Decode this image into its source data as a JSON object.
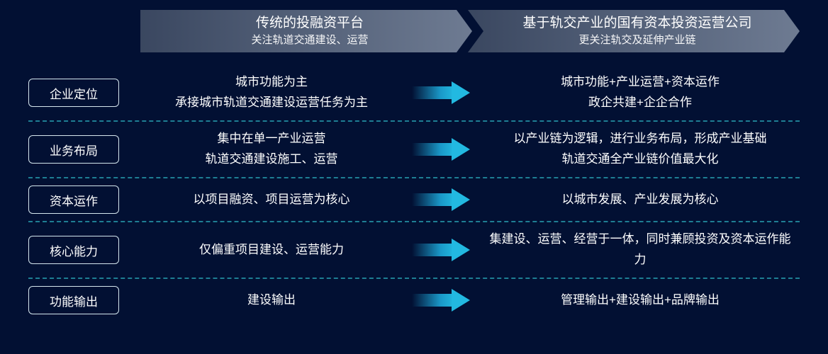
{
  "type": "infographic",
  "background_color": "#021033",
  "text_color": "#ffffff",
  "divider_color": "#228a9e",
  "label_border_color": "#d5e6ee",
  "arrow_gradient": [
    "rgba(6,29,68,0)",
    "#22b9e1"
  ],
  "header": {
    "left": {
      "title": "传统的投融资平台",
      "sub": "关注轨道交通建设、运营"
    },
    "right": {
      "title": "基于轨交产业的国有资本投资运营公司",
      "sub": "更关注轨交及延伸产业链"
    },
    "gradient": [
      "#3a4760",
      "#6e7b92"
    ]
  },
  "rows": [
    {
      "label": "企业定位",
      "left1": "城市功能为主",
      "left2": "承接城市轨道交通建设运营任务为主",
      "right1": "城市功能+产业运营+资本运作",
      "right2": "政企共建+企企合作"
    },
    {
      "label": "业务布局",
      "left1": "集中在单一产业运营",
      "left2": "轨道交通建设施工、运营",
      "right1": "以产业链为逻辑，进行业务布局，形成产业基础",
      "right2": "轨道交通全产业链价值最大化"
    },
    {
      "label": "资本运作",
      "left1": "以项目融资、项目运营为核心",
      "left2": "",
      "right1": "以城市发展、产业发展为核心",
      "right2": ""
    },
    {
      "label": "核心能力",
      "left1": "仅偏重项目建设、运营能力",
      "left2": "",
      "right1": "集建设、运营、经营于一体，同时兼顾投资及资本运作能力",
      "right2": ""
    },
    {
      "label": "功能输出",
      "left1": "建设输出",
      "left2": "",
      "right1": "管理输出+建设输出+品牌输出",
      "right2": ""
    }
  ]
}
